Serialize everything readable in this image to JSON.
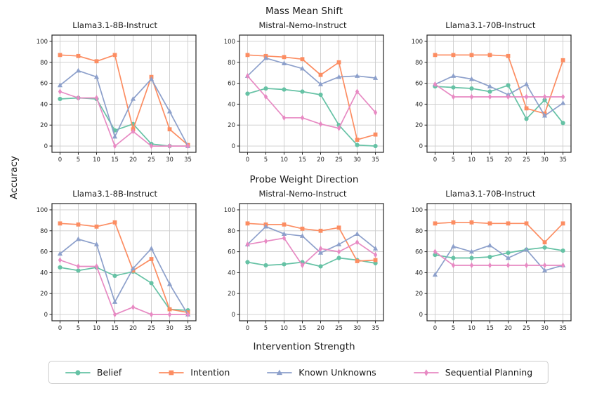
{
  "figure": {
    "row_titles": [
      "Mass Mean Shift",
      "Probe Weight Direction"
    ],
    "xlabel": "Intervention Strength",
    "ylabel": "Accuracy"
  },
  "chart_data": {
    "type": "line",
    "x": [
      0,
      5,
      10,
      15,
      20,
      25,
      30,
      35
    ],
    "xticks": [
      0,
      5,
      10,
      15,
      20,
      25,
      30,
      35
    ],
    "yticks": [
      0,
      20,
      40,
      60,
      80,
      100
    ],
    "ylim": [
      0,
      100
    ],
    "grid": true,
    "legend_position": "bottom",
    "xlabel": "Intervention Strength",
    "ylabel": "Accuracy",
    "series_meta": [
      {
        "key": "belief",
        "name": "Belief",
        "color": "#66c2a5",
        "marker": "circle"
      },
      {
        "key": "intention",
        "name": "Intention",
        "color": "#fc8d62",
        "marker": "square"
      },
      {
        "key": "known_unknowns",
        "name": "Known Unknowns",
        "color": "#8da0cb",
        "marker": "triangle"
      },
      {
        "key": "sequential_planning",
        "name": "Sequential Planning",
        "color": "#e78ac3",
        "marker": "diamond"
      }
    ],
    "charts": [
      {
        "group": "Mass Mean Shift",
        "title": "Llama3.1-8B-Instruct",
        "series": {
          "belief": [
            45,
            46,
            45,
            15,
            21,
            2,
            0,
            0
          ],
          "intention": [
            87,
            86,
            81,
            87,
            16,
            66,
            16,
            1
          ],
          "known_unknowns": [
            58,
            72,
            66,
            9,
            45,
            64,
            33,
            0
          ],
          "sequential_planning": [
            52,
            46,
            46,
            0,
            14,
            0,
            0,
            0
          ]
        }
      },
      {
        "group": "Mass Mean Shift",
        "title": "Mistral-Nemo-Instruct",
        "series": {
          "belief": [
            50,
            55,
            54,
            52,
            49,
            20,
            1,
            0
          ],
          "intention": [
            87,
            86,
            85,
            83,
            68,
            80,
            6,
            11
          ],
          "known_unknowns": [
            67,
            84,
            79,
            74,
            59,
            66,
            67,
            65
          ],
          "sequential_planning": [
            67,
            47,
            27,
            27,
            21,
            17,
            52,
            32
          ]
        }
      },
      {
        "group": "Mass Mean Shift",
        "title": "Llama3.1-70B-Instruct",
        "series": {
          "belief": [
            57,
            56,
            55,
            52,
            58,
            26,
            44,
            22
          ],
          "intention": [
            87,
            87,
            87,
            87,
            86,
            36,
            31,
            82
          ],
          "known_unknowns": [
            59,
            67,
            64,
            57,
            49,
            59,
            29,
            41
          ],
          "sequential_planning": [
            59,
            47,
            47,
            47,
            47,
            47,
            47,
            47
          ]
        }
      },
      {
        "group": "Probe Weight Direction",
        "title": "Llama3.1-8B-Instruct",
        "series": {
          "belief": [
            45,
            42,
            45,
            37,
            41,
            30,
            5,
            4
          ],
          "intention": [
            87,
            86,
            84,
            88,
            42,
            53,
            5,
            2
          ],
          "known_unknowns": [
            58,
            72,
            67,
            12,
            44,
            63,
            29,
            0
          ],
          "sequential_planning": [
            52,
            46,
            46,
            0,
            7,
            0,
            0,
            0
          ]
        }
      },
      {
        "group": "Probe Weight Direction",
        "title": "Mistral-Nemo-Instruct",
        "series": {
          "belief": [
            50,
            47,
            48,
            50,
            46,
            54,
            52,
            49
          ],
          "intention": [
            87,
            86,
            86,
            82,
            80,
            83,
            51,
            52
          ],
          "known_unknowns": [
            67,
            84,
            77,
            75,
            59,
            67,
            77,
            63
          ],
          "sequential_planning": [
            67,
            70,
            73,
            47,
            63,
            60,
            69,
            57
          ]
        }
      },
      {
        "group": "Probe Weight Direction",
        "title": "Llama3.1-70B-Instruct",
        "series": {
          "belief": [
            57,
            54,
            54,
            55,
            59,
            62,
            64,
            61
          ],
          "intention": [
            87,
            88,
            88,
            87,
            87,
            87,
            69,
            87
          ],
          "known_unknowns": [
            38,
            65,
            60,
            66,
            54,
            62,
            42,
            47
          ],
          "sequential_planning": [
            60,
            47,
            47,
            47,
            47,
            47,
            47,
            47
          ]
        }
      }
    ]
  }
}
